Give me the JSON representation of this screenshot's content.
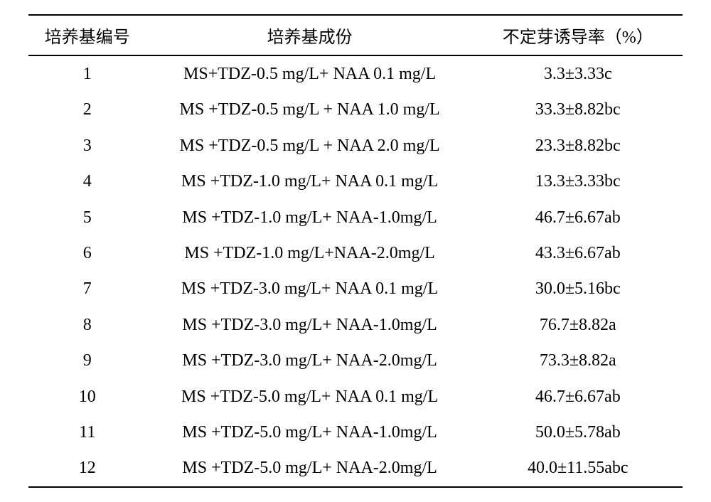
{
  "table": {
    "headers": {
      "id": "培养基编号",
      "composition": "培养基成份",
      "induction_rate": "不定芽诱导率（%）"
    },
    "rows": [
      {
        "id": "1",
        "composition": "MS+TDZ-0.5 mg/L+ NAA 0.1 mg/L",
        "rate": "3.3±3.33c"
      },
      {
        "id": "2",
        "composition": "MS +TDZ-0.5 mg/L + NAA 1.0 mg/L",
        "rate": "33.3±8.82bc"
      },
      {
        "id": "3",
        "composition": "MS +TDZ-0.5 mg/L + NAA 2.0 mg/L",
        "rate": "23.3±8.82bc"
      },
      {
        "id": "4",
        "composition": "MS +TDZ-1.0 mg/L+ NAA 0.1 mg/L",
        "rate": "13.3±3.33bc"
      },
      {
        "id": "5",
        "composition": "MS +TDZ-1.0 mg/L+ NAA-1.0mg/L",
        "rate": "46.7±6.67ab"
      },
      {
        "id": "6",
        "composition": "MS +TDZ-1.0 mg/L+NAA-2.0mg/L",
        "rate": "43.3±6.67ab"
      },
      {
        "id": "7",
        "composition": "MS +TDZ-3.0 mg/L+ NAA 0.1 mg/L",
        "rate": "30.0±5.16bc"
      },
      {
        "id": "8",
        "composition": "MS +TDZ-3.0 mg/L+ NAA-1.0mg/L",
        "rate": "76.7±8.82a"
      },
      {
        "id": "9",
        "composition": "MS +TDZ-3.0 mg/L+ NAA-2.0mg/L",
        "rate": "73.3±8.82a"
      },
      {
        "id": "10",
        "composition": "MS +TDZ-5.0 mg/L+ NAA 0.1 mg/L",
        "rate": "46.7±6.67ab"
      },
      {
        "id": "11",
        "composition": "MS +TDZ-5.0 mg/L+ NAA-1.0mg/L",
        "rate": "50.0±5.78ab"
      },
      {
        "id": "12",
        "composition": "MS +TDZ-5.0 mg/L+ NAA-2.0mg/L",
        "rate": "40.0±11.55abc"
      }
    ]
  }
}
